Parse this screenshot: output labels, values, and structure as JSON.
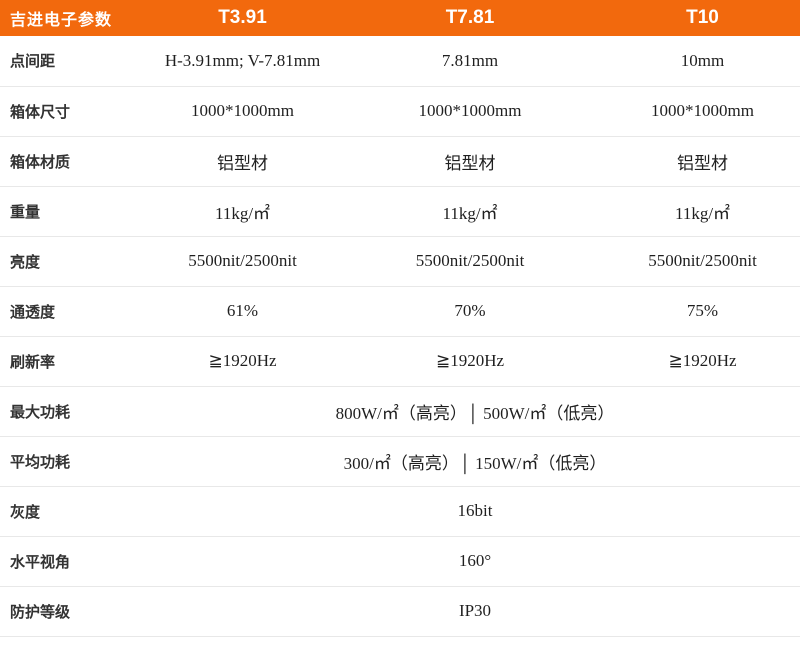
{
  "accent_color": "#F2690D",
  "divider_color": "#e8e8e8",
  "header": {
    "title": "吉进电子参数",
    "columns": [
      "T3.91",
      "T7.81",
      "T10"
    ]
  },
  "rows": [
    {
      "label": "点间距",
      "values": [
        "H-3.91mm; V-7.81mm",
        "7.81mm",
        "10mm"
      ]
    },
    {
      "label": "箱体尺寸",
      "values": [
        "1000*1000mm",
        "1000*1000mm",
        "1000*1000mm"
      ]
    },
    {
      "label": "箱体材质",
      "values": [
        "铝型材",
        "铝型材",
        "铝型材"
      ]
    },
    {
      "label": "重量",
      "values": [
        "11kg/㎡",
        "11kg/㎡",
        "11kg/㎡"
      ]
    },
    {
      "label": "亮度",
      "values": [
        "5500nit/2500nit",
        "5500nit/2500nit",
        "5500nit/2500nit"
      ]
    },
    {
      "label": "通透度",
      "values": [
        "61%",
        "70%",
        "75%"
      ]
    },
    {
      "label": "刷新率",
      "values": [
        "≧1920Hz",
        "≧1920Hz",
        "≧1920Hz"
      ]
    },
    {
      "label": "最大功耗",
      "span": "800W/㎡（高亮）│ 500W/㎡（低亮）"
    },
    {
      "label": "平均功耗",
      "span": "300/㎡（高亮）│ 150W/㎡（低亮）"
    },
    {
      "label": "灰度",
      "span": "16bit"
    },
    {
      "label": "水平视角",
      "span": "160°"
    },
    {
      "label": "防护等级",
      "span": "IP30"
    }
  ]
}
